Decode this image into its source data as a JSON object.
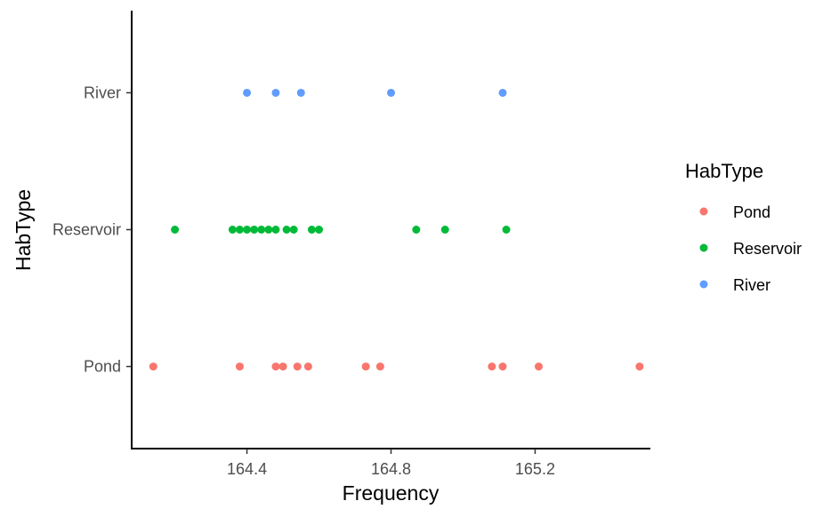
{
  "chart_data": {
    "type": "scatter",
    "title": "",
    "xlabel": "Frequency",
    "ylabel": "HabType",
    "categories": [
      "Pond",
      "Reservoir",
      "River"
    ],
    "xlim": [
      164.08,
      165.52
    ],
    "xticks": [
      {
        "value": 164.4,
        "label": "164.4"
      },
      {
        "value": 164.8,
        "label": "164.8"
      },
      {
        "value": 165.2,
        "label": "165.2"
      }
    ],
    "grid": false,
    "legend": {
      "title": "HabType",
      "position": "right"
    },
    "series": [
      {
        "name": "Pond",
        "color": "#F8766D",
        "x": [
          164.14,
          164.38,
          164.48,
          164.5,
          164.54,
          164.57,
          164.73,
          164.77,
          165.08,
          165.11,
          165.21,
          165.49
        ]
      },
      {
        "name": "Reservoir",
        "color": "#00BA38",
        "x": [
          164.2,
          164.36,
          164.38,
          164.4,
          164.42,
          164.44,
          164.46,
          164.48,
          164.51,
          164.53,
          164.58,
          164.6,
          164.87,
          164.95,
          165.12
        ]
      },
      {
        "name": "River",
        "color": "#619CFF",
        "x": [
          164.4,
          164.48,
          164.55,
          164.8,
          165.11
        ]
      }
    ]
  }
}
